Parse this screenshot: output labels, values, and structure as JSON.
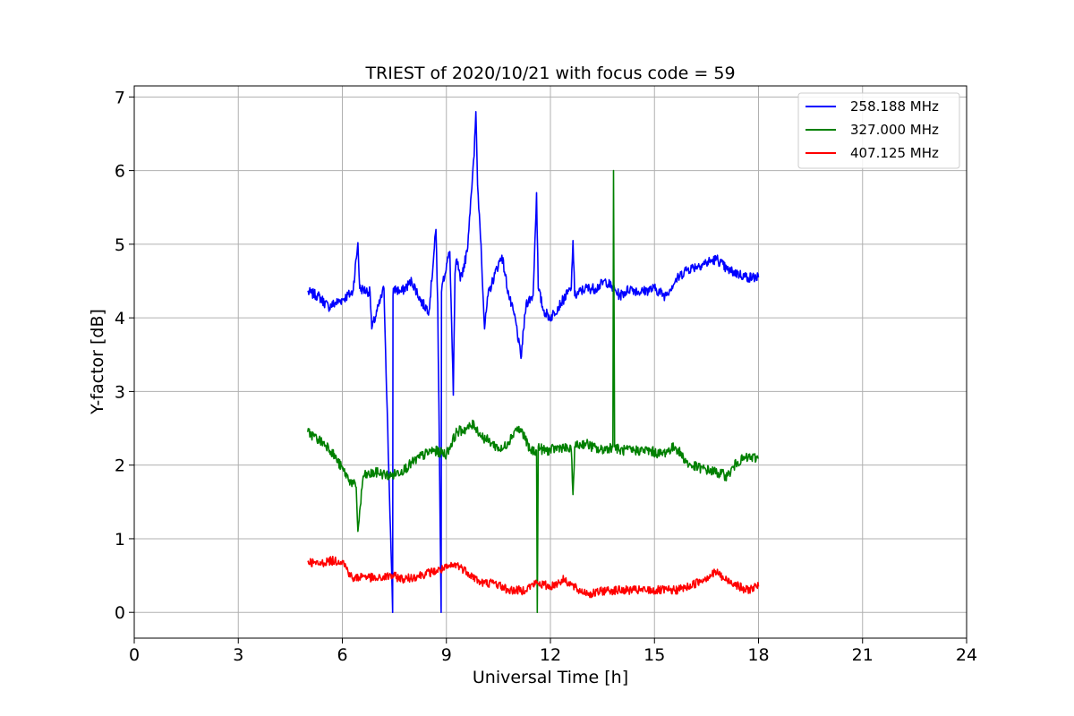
{
  "chart_data": {
    "type": "line",
    "title": "TRIEST of 2020/10/21 with focus code = 59",
    "xlabel": "Universal Time [h]",
    "ylabel": "Y-factor [dB]",
    "xlim": [
      0,
      24
    ],
    "ylim": [
      -0.35,
      7.15
    ],
    "xticks": [
      0,
      3,
      6,
      9,
      12,
      15,
      18,
      21,
      24
    ],
    "yticks": [
      0,
      1,
      2,
      3,
      4,
      5,
      6,
      7
    ],
    "grid": true,
    "legend_position": "top-right",
    "series": [
      {
        "name": "258.188 MHz",
        "color": "#0000ff",
        "x": [
          5.0,
          5.3,
          5.6,
          6.0,
          6.3,
          6.45,
          6.5,
          6.8,
          6.85,
          7.2,
          7.45,
          7.46,
          7.47,
          7.7,
          8.0,
          8.3,
          8.5,
          8.7,
          8.75,
          8.85,
          8.86,
          8.9,
          9.1,
          9.2,
          9.25,
          9.3,
          9.4,
          9.6,
          9.7,
          9.8,
          9.85,
          9.9,
          10.0,
          10.1,
          10.2,
          10.4,
          10.6,
          10.8,
          11.0,
          11.15,
          11.3,
          11.5,
          11.6,
          11.65,
          11.8,
          12.0,
          12.3,
          12.6,
          12.65,
          12.7,
          13.0,
          13.3,
          13.6,
          13.8,
          14.0,
          14.3,
          14.6,
          15.0,
          15.3,
          15.6,
          15.9,
          16.2,
          16.5,
          16.8,
          17.1,
          17.4,
          17.7,
          18.0
        ],
        "y": [
          4.35,
          4.3,
          4.15,
          4.25,
          4.35,
          5.02,
          4.4,
          4.35,
          3.85,
          4.4,
          0.0,
          4.3,
          4.4,
          4.35,
          4.5,
          4.2,
          4.1,
          5.2,
          4.2,
          0.0,
          4.35,
          4.5,
          4.9,
          2.95,
          4.6,
          4.8,
          4.5,
          4.9,
          5.6,
          6.2,
          6.8,
          5.8,
          5.0,
          3.85,
          4.3,
          4.6,
          4.85,
          4.3,
          3.95,
          3.45,
          4.2,
          4.3,
          5.7,
          4.4,
          4.1,
          4.0,
          4.2,
          4.4,
          5.05,
          4.3,
          4.4,
          4.4,
          4.5,
          4.4,
          4.3,
          4.4,
          4.35,
          4.4,
          4.3,
          4.5,
          4.65,
          4.7,
          4.75,
          4.8,
          4.65,
          4.6,
          4.55,
          4.55
        ]
      },
      {
        "name": "327.000 MHz",
        "color": "#008000",
        "x": [
          5.0,
          5.3,
          5.6,
          6.0,
          6.2,
          6.4,
          6.45,
          6.6,
          7.0,
          7.4,
          7.8,
          8.2,
          8.6,
          9.0,
          9.3,
          9.6,
          9.8,
          10.0,
          10.3,
          10.6,
          10.9,
          11.0,
          11.2,
          11.4,
          11.6,
          11.62,
          11.65,
          11.8,
          12.0,
          12.3,
          12.6,
          12.65,
          12.7,
          13.0,
          13.4,
          13.8,
          13.82,
          13.85,
          14.0,
          14.4,
          14.8,
          15.2,
          15.6,
          16.0,
          16.4,
          16.8,
          17.1,
          17.4,
          17.7,
          18.0
        ],
        "y": [
          2.45,
          2.35,
          2.25,
          1.95,
          1.8,
          1.7,
          1.1,
          1.85,
          1.9,
          1.85,
          1.95,
          2.1,
          2.2,
          2.15,
          2.45,
          2.5,
          2.55,
          2.4,
          2.3,
          2.2,
          2.4,
          2.5,
          2.45,
          2.2,
          2.2,
          0.0,
          2.25,
          2.2,
          2.2,
          2.25,
          2.2,
          1.6,
          2.25,
          2.3,
          2.2,
          2.25,
          6.0,
          2.25,
          2.2,
          2.2,
          2.2,
          2.15,
          2.25,
          2.0,
          1.95,
          1.9,
          1.85,
          2.05,
          2.1,
          2.1
        ]
      },
      {
        "name": "407.125 MHz",
        "color": "#ff0000",
        "x": [
          5.0,
          5.3,
          5.6,
          6.0,
          6.3,
          6.6,
          7.0,
          7.4,
          7.8,
          8.2,
          8.6,
          9.0,
          9.3,
          9.6,
          10.0,
          10.4,
          10.8,
          11.2,
          11.6,
          12.0,
          12.4,
          12.8,
          13.2,
          13.6,
          14.0,
          14.4,
          14.8,
          15.2,
          15.6,
          16.0,
          16.4,
          16.8,
          17.0,
          17.3,
          17.6,
          18.0
        ],
        "y": [
          0.7,
          0.65,
          0.7,
          0.7,
          0.45,
          0.5,
          0.45,
          0.5,
          0.45,
          0.5,
          0.55,
          0.6,
          0.65,
          0.55,
          0.4,
          0.4,
          0.3,
          0.3,
          0.4,
          0.35,
          0.45,
          0.3,
          0.25,
          0.3,
          0.3,
          0.3,
          0.3,
          0.3,
          0.3,
          0.35,
          0.45,
          0.55,
          0.45,
          0.4,
          0.3,
          0.35
        ]
      }
    ]
  }
}
